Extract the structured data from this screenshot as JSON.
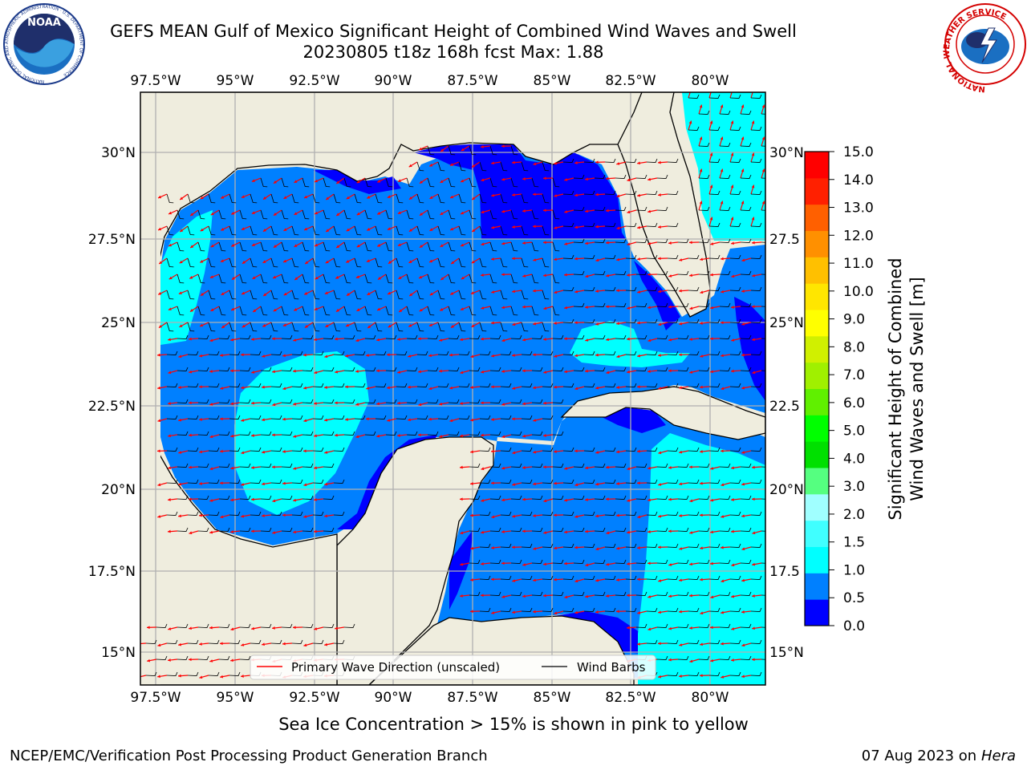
{
  "title": "GEFS MEAN Gulf of Mexico Significant Height of Combined Wind Waves and Swell",
  "subtitle": "20230805 t18z 168h fcst   Max: 1.88",
  "map": {
    "lon_ticks_top": [
      "97.5°W",
      "95°W",
      "92.5°W",
      "90°W",
      "87.5°W",
      "85°W",
      "82.5°W",
      "80°W"
    ],
    "lon_ticks_bottom": [
      "97.5°W",
      "95°W",
      "92.5°W",
      "90°W",
      "87.5°W",
      "85°W",
      "82.5°W",
      "80°W"
    ],
    "lat_ticks_left": [
      "30°N",
      "27.5°N",
      "25°N",
      "22.5°N",
      "20°N",
      "17.5°N",
      "15°N"
    ],
    "lat_ticks_right": [
      "30°N",
      "27.5",
      "25°N",
      "22.5",
      "20°N",
      "17.5",
      "15°N"
    ],
    "legend": {
      "primary_wave": "Primary Wave Direction (unscaled)",
      "wind_barbs": "Wind Barbs"
    }
  },
  "colorbar": {
    "label_line1": "Significant Height of Combined",
    "label_line2": "Wind Waves and Swell [m]",
    "ticks": [
      "15.0",
      "14.0",
      "13.0",
      "12.0",
      "11.0",
      "10.0",
      "9.0",
      "8.0",
      "7.0",
      "6.0",
      "5.0",
      "4.0",
      "3.0",
      "2.0",
      "1.5",
      "1.0",
      "0.5",
      "0.0"
    ],
    "colors": [
      "#0000ff",
      "#0080ff",
      "#00ffff",
      "#40ffff",
      "#a0ffff",
      "#55ff80",
      "#00e000",
      "#00ff00",
      "#60f000",
      "#a0f000",
      "#d0f000",
      "#ffff00",
      "#ffe600",
      "#ffc000",
      "#ff9000",
      "#ff6000",
      "#ff2000",
      "#ff0000"
    ]
  },
  "ice_note": "Sea Ice Concentration > 15% is shown in pink to yellow",
  "footer": {
    "left": "NCEP/EMC/Verification Post Processing Product Generation Branch",
    "right_date": "07 Aug 2023 on",
    "right_host": "Hera"
  },
  "logos": {
    "noaa": "NOAA",
    "noaa_ring": "NATIONAL OCEANIC AND ATMOSPHERIC ADMINISTRATION · U.S. DEPARTMENT OF COMMERCE",
    "nws_ring": "NATIONAL WEATHER SERVICE"
  }
}
